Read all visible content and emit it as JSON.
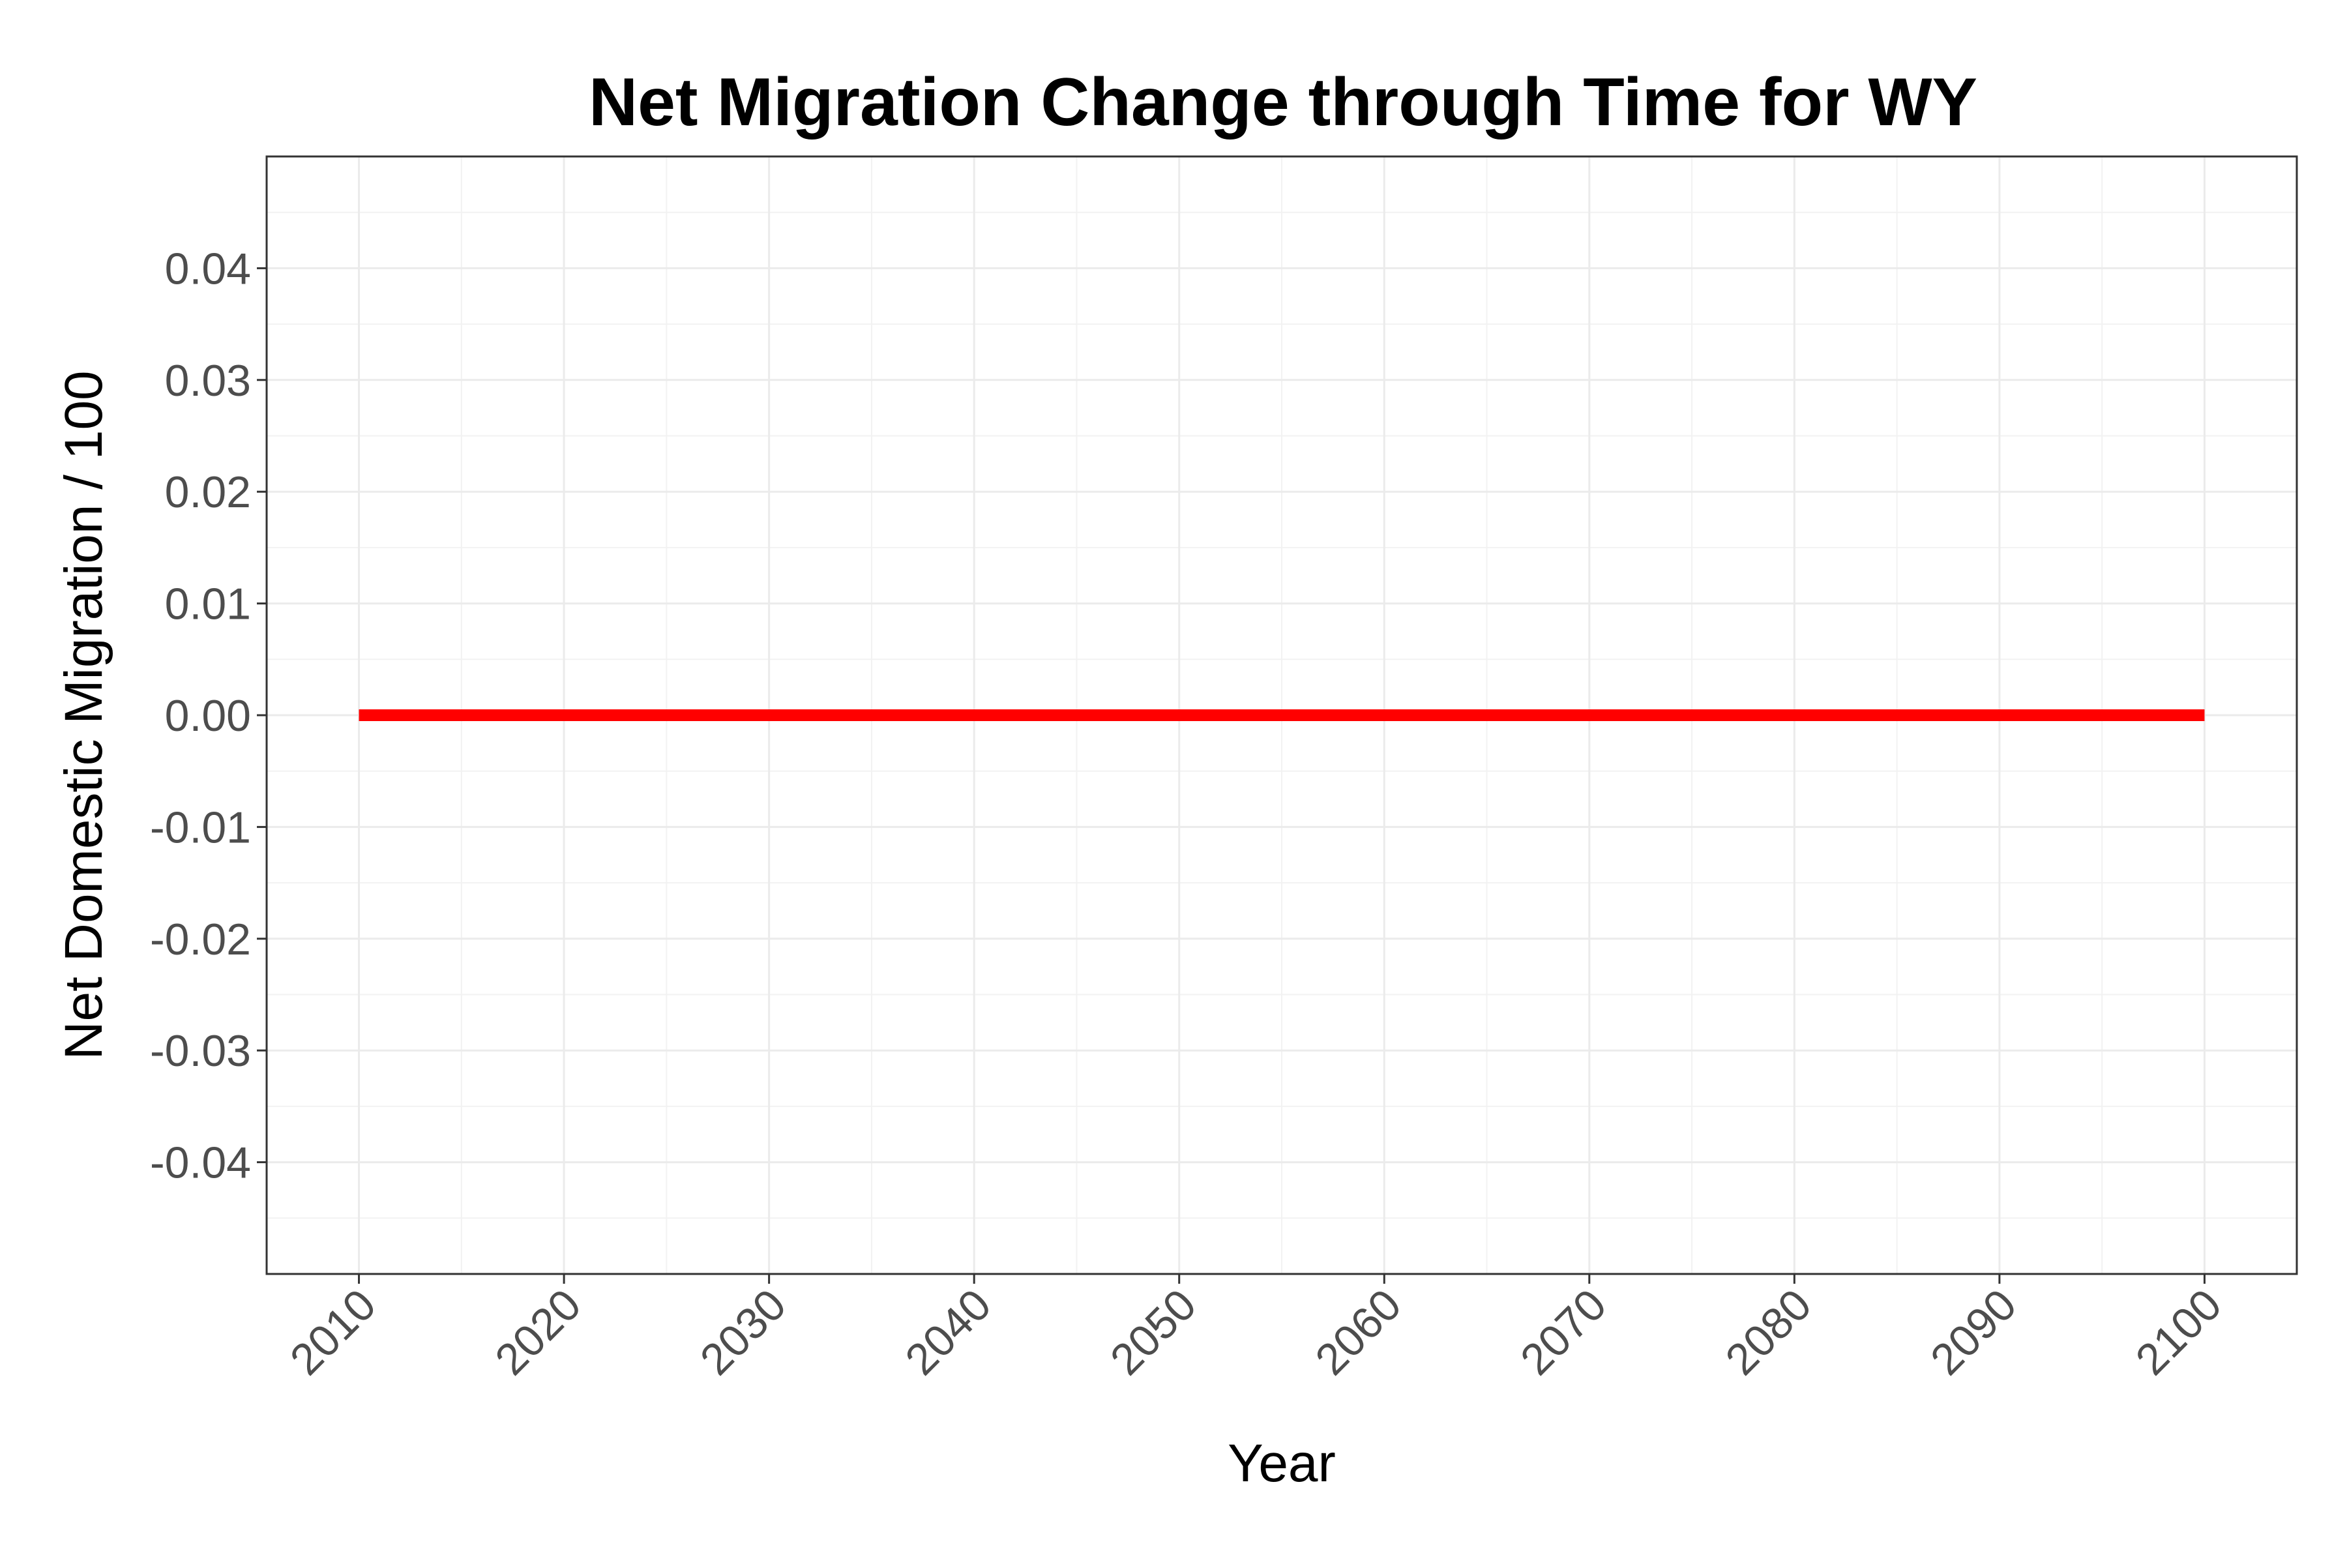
{
  "chart_data": {
    "type": "line",
    "title": "Net Migration Change through Time for WY",
    "xlabel": "Year",
    "ylabel": "Net Domestic Migration / 100",
    "x_ticks": [
      2010,
      2020,
      2030,
      2040,
      2050,
      2060,
      2070,
      2080,
      2090,
      2100
    ],
    "x_tick_labels": [
      "2010",
      "2020",
      "2030",
      "2040",
      "2050",
      "2060",
      "2070",
      "2080",
      "2090",
      "2100"
    ],
    "y_ticks": [
      -0.04,
      -0.03,
      -0.02,
      -0.01,
      0.0,
      0.01,
      0.02,
      0.03,
      0.04
    ],
    "y_tick_labels": [
      "-0.04",
      "-0.03",
      "-0.02",
      "-0.01",
      "0.00",
      "0.01",
      "0.02",
      "0.03",
      "0.04"
    ],
    "xlim": [
      2005.5,
      2104.5
    ],
    "ylim": [
      -0.05,
      0.05
    ],
    "grid": true,
    "series": [
      {
        "color": "#ff0000",
        "x": [
          2010,
          2100
        ],
        "y": [
          0,
          0
        ]
      }
    ]
  }
}
